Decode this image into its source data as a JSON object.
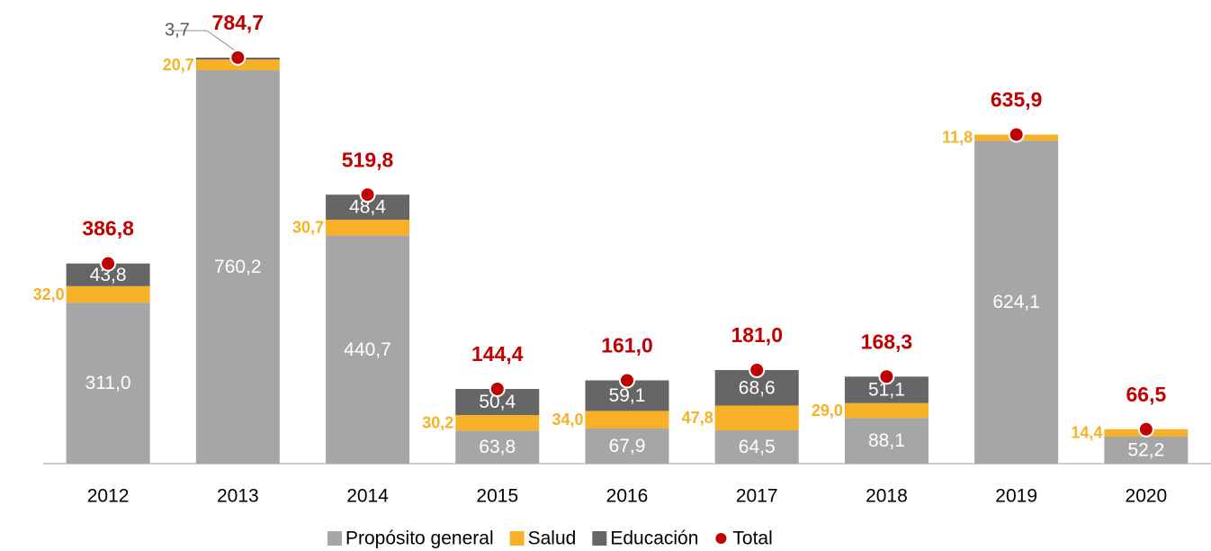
{
  "chart_data": {
    "type": "stacked-bar",
    "categories": [
      "2012",
      "2013",
      "2014",
      "2015",
      "2016",
      "2017",
      "2018",
      "2019",
      "2020"
    ],
    "series": [
      {
        "name": "Propósito general",
        "color": "#a6a6a6",
        "values": [
          311.0,
          760.2,
          440.7,
          63.8,
          67.9,
          64.5,
          88.1,
          624.1,
          52.2
        ],
        "value_labels": [
          "311,0",
          "760,2",
          "440,7",
          "63,8",
          "67,9",
          "64,5",
          "88,1",
          "624,1",
          "52,2"
        ]
      },
      {
        "name": "Salud",
        "color": "#f7b128",
        "values": [
          32.0,
          20.7,
          30.7,
          30.2,
          34.0,
          47.8,
          29.0,
          11.8,
          14.4
        ],
        "value_labels": [
          "32,0",
          "20,7",
          "30,7",
          "30,2",
          "34,0",
          "47,8",
          "29,0",
          "11,8",
          "14,4"
        ]
      },
      {
        "name": "Educación",
        "color": "#666666",
        "values": [
          43.8,
          3.7,
          48.4,
          50.4,
          59.1,
          68.6,
          51.1,
          null,
          null
        ],
        "value_labels": [
          "43,8",
          "3,7",
          "48,4",
          "50,4",
          "59,1",
          "68,6",
          "51,1",
          null,
          null
        ]
      },
      {
        "name": "Total",
        "color": "#c00000",
        "type": "point",
        "values": [
          386.8,
          784.7,
          519.8,
          144.4,
          161.0,
          181.0,
          168.3,
          635.9,
          66.5
        ],
        "value_labels": [
          "386,8",
          "784,7",
          "519,8",
          "144,4",
          "161,0",
          "181,0",
          "168,3",
          "635,9",
          "66,5"
        ]
      }
    ]
  }
}
